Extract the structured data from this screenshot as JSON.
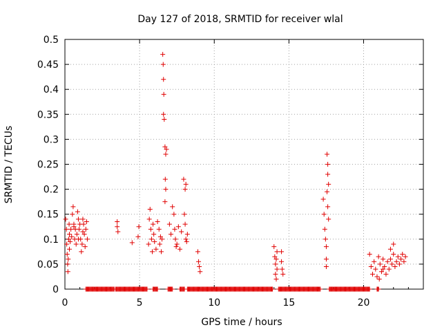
{
  "chart_data": {
    "type": "scatter",
    "title": "Day 127 of 2018, SRMTID for receiver wlal",
    "xlabel": "GPS time / hours",
    "ylabel": "SRMTID / TECUs",
    "xlim": [
      0,
      24
    ],
    "ylim": [
      0,
      0.5
    ],
    "xticks": [
      0,
      5,
      10,
      15,
      20
    ],
    "yticks": [
      0,
      0.05,
      0.1,
      0.15,
      0.2,
      0.25,
      0.3,
      0.35,
      0.4,
      0.45,
      0.5
    ],
    "xtick_labels": [
      "0",
      "5",
      "10",
      "15",
      "20"
    ],
    "ytick_labels": [
      "0",
      "0.05",
      "0.1",
      "0.15",
      "0.2",
      "0.25",
      "0.3",
      "0.35",
      "0.4",
      "0.45",
      "0.5"
    ],
    "grid": true,
    "marker": "+",
    "marker_color": "#e00000",
    "series": [
      {
        "name": "SRMTID",
        "points": [
          [
            0.05,
            0.14
          ],
          [
            0.1,
            0.12
          ],
          [
            0.12,
            0.09
          ],
          [
            0.15,
            0.07
          ],
          [
            0.18,
            0.05
          ],
          [
            0.2,
            0.035
          ],
          [
            0.22,
            0.06
          ],
          [
            0.25,
            0.1
          ],
          [
            0.28,
            0.13
          ],
          [
            0.3,
            0.11
          ],
          [
            0.35,
            0.095
          ],
          [
            0.4,
            0.12
          ],
          [
            0.45,
            0.105
          ],
          [
            0.5,
            0.15
          ],
          [
            0.55,
            0.165
          ],
          [
            0.6,
            0.13
          ],
          [
            0.65,
            0.1
          ],
          [
            0.7,
            0.12
          ],
          [
            0.75,
            0.09
          ],
          [
            0.8,
            0.11
          ],
          [
            0.85,
            0.155
          ],
          [
            0.9,
            0.14
          ],
          [
            0.95,
            0.12
          ],
          [
            1.0,
            0.13
          ],
          [
            1.05,
            0.1
          ],
          [
            1.1,
            0.075
          ],
          [
            1.15,
            0.09
          ],
          [
            1.2,
            0.115
          ],
          [
            1.25,
            0.13
          ],
          [
            1.3,
            0.11
          ],
          [
            1.35,
            0.085
          ],
          [
            1.4,
            0.12
          ],
          [
            1.45,
            0.135
          ],
          [
            1.5,
            0.1
          ],
          [
            0.3,
            0.08
          ],
          [
            0.6,
            0.125
          ],
          [
            0.9,
            0.1
          ],
          [
            1.2,
            0.14
          ],
          [
            3.5,
            0.135
          ],
          [
            3.5,
            0.125
          ],
          [
            3.55,
            0.115
          ],
          [
            4.5,
            0.093
          ],
          [
            4.9,
            0.105
          ],
          [
            4.95,
            0.125
          ],
          [
            5.6,
            0.09
          ],
          [
            5.65,
            0.14
          ],
          [
            5.7,
            0.16
          ],
          [
            5.75,
            0.12
          ],
          [
            5.8,
            0.1
          ],
          [
            5.85,
            0.075
          ],
          [
            5.9,
            0.13
          ],
          [
            5.95,
            0.11
          ],
          [
            6.0,
            0.095
          ],
          [
            6.1,
            0.08
          ],
          [
            6.2,
            0.135
          ],
          [
            6.3,
            0.12
          ],
          [
            6.35,
            0.09
          ],
          [
            6.4,
            0.105
          ],
          [
            6.45,
            0.075
          ],
          [
            6.5,
            0.1
          ],
          [
            6.55,
            0.47
          ],
          [
            6.58,
            0.45
          ],
          [
            6.6,
            0.42
          ],
          [
            6.62,
            0.39
          ],
          [
            6.6,
            0.35
          ],
          [
            6.65,
            0.34
          ],
          [
            6.7,
            0.285
          ],
          [
            6.75,
            0.27
          ],
          [
            6.72,
            0.22
          ],
          [
            6.75,
            0.2
          ],
          [
            6.7,
            0.175
          ],
          [
            6.8,
            0.28
          ],
          [
            7.0,
            0.13
          ],
          [
            7.1,
            0.11
          ],
          [
            7.2,
            0.165
          ],
          [
            7.3,
            0.15
          ],
          [
            7.35,
            0.12
          ],
          [
            7.4,
            0.1
          ],
          [
            7.45,
            0.085
          ],
          [
            7.5,
            0.09
          ],
          [
            7.6,
            0.125
          ],
          [
            7.7,
            0.08
          ],
          [
            7.8,
            0.115
          ],
          [
            7.95,
            0.22
          ],
          [
            8.05,
            0.2
          ],
          [
            8.1,
            0.21
          ],
          [
            8.0,
            0.15
          ],
          [
            8.05,
            0.13
          ],
          [
            8.1,
            0.1
          ],
          [
            8.15,
            0.095
          ],
          [
            8.2,
            0.11
          ],
          [
            8.9,
            0.075
          ],
          [
            8.95,
            0.055
          ],
          [
            9.0,
            0.045
          ],
          [
            9.05,
            0.035
          ],
          [
            14.0,
            0.085
          ],
          [
            14.05,
            0.065
          ],
          [
            14.1,
            0.05
          ],
          [
            14.15,
            0.06
          ],
          [
            14.2,
            0.075
          ],
          [
            14.1,
            0.03
          ],
          [
            14.15,
            0.02
          ],
          [
            14.2,
            0.04
          ],
          [
            14.5,
            0.075
          ],
          [
            14.5,
            0.055
          ],
          [
            14.55,
            0.04
          ],
          [
            14.6,
            0.03
          ],
          [
            17.3,
            0.18
          ],
          [
            17.35,
            0.15
          ],
          [
            17.4,
            0.12
          ],
          [
            17.45,
            0.1
          ],
          [
            17.5,
            0.085
          ],
          [
            17.5,
            0.06
          ],
          [
            17.5,
            0.045
          ],
          [
            17.55,
            0.27
          ],
          [
            17.6,
            0.25
          ],
          [
            17.6,
            0.23
          ],
          [
            17.65,
            0.21
          ],
          [
            17.55,
            0.195
          ],
          [
            17.6,
            0.165
          ],
          [
            17.65,
            0.14
          ],
          [
            20.4,
            0.07
          ],
          [
            20.5,
            0.045
          ],
          [
            20.6,
            0.03
          ],
          [
            20.7,
            0.055
          ],
          [
            20.8,
            0.04
          ],
          [
            20.9,
            0.025
          ],
          [
            21.0,
            0.065
          ],
          [
            21.05,
            0.02
          ],
          [
            21.1,
            0.05
          ],
          [
            21.2,
            0.035
          ],
          [
            21.3,
            0.06
          ],
          [
            21.4,
            0.045
          ],
          [
            21.5,
            0.03
          ],
          [
            21.6,
            0.055
          ],
          [
            21.7,
            0.04
          ],
          [
            21.8,
            0.06
          ],
          [
            21.9,
            0.05
          ],
          [
            22.0,
            0.07
          ],
          [
            22.1,
            0.045
          ],
          [
            22.2,
            0.055
          ],
          [
            22.3,
            0.065
          ],
          [
            22.4,
            0.05
          ],
          [
            22.5,
            0.06
          ],
          [
            22.6,
            0.07
          ],
          [
            22.7,
            0.055
          ],
          [
            22.8,
            0.065
          ],
          [
            22.0,
            0.09
          ],
          [
            21.8,
            0.08
          ],
          [
            21.3,
            0.04
          ]
        ]
      }
    ],
    "zero_band": [
      [
        1.4,
        3.3
      ],
      [
        3.4,
        5.5
      ],
      [
        5.9,
        6.2
      ],
      [
        6.9,
        7.2
      ],
      [
        7.7,
        8.0
      ],
      [
        8.2,
        13.9
      ],
      [
        14.3,
        17.1
      ],
      [
        17.7,
        20.4
      ],
      [
        20.9,
        21.0
      ]
    ]
  }
}
